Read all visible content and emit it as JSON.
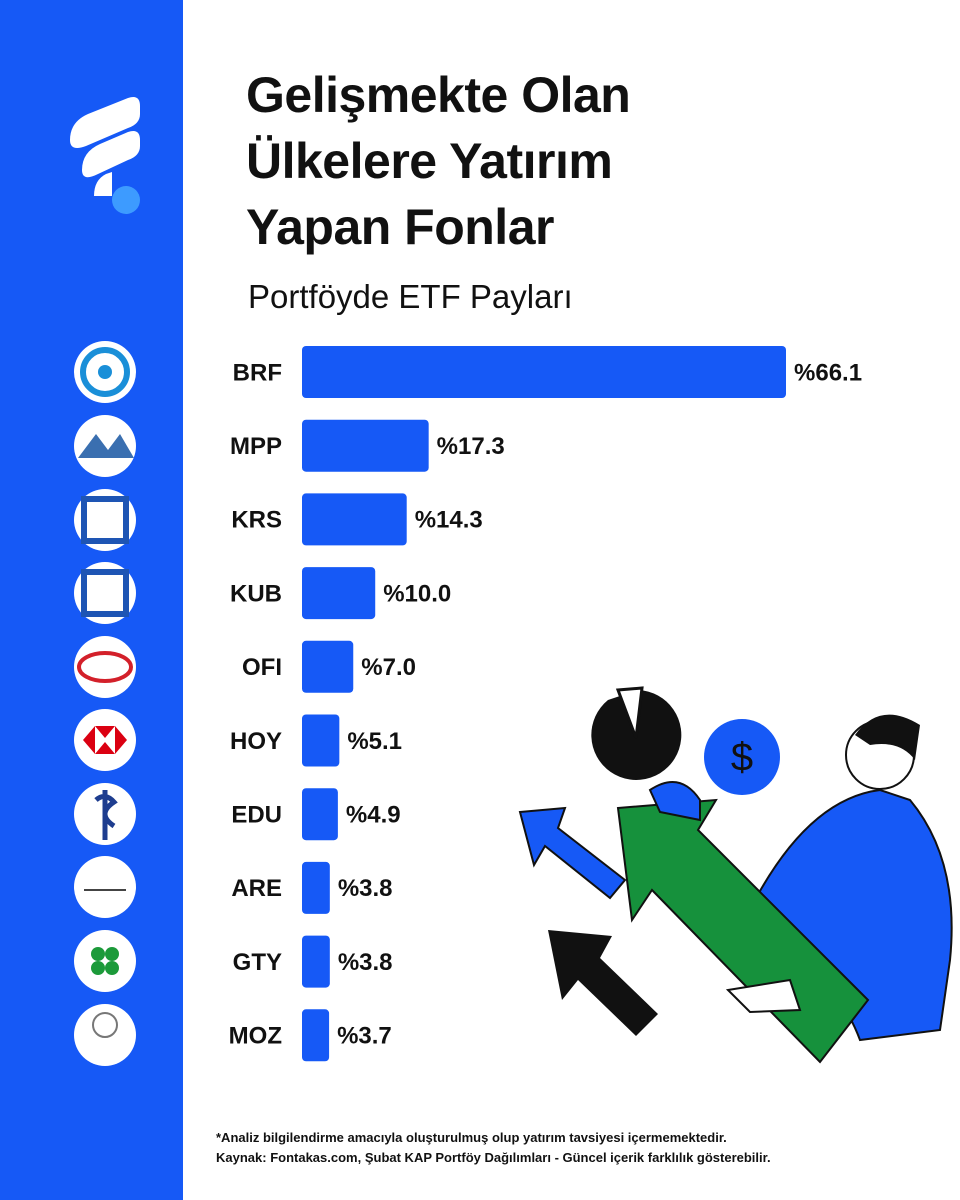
{
  "chart_data": {
    "type": "bar",
    "orientation": "horizontal",
    "title": "Gelişmekte Olan Ülkelere Yatırım Yapan Fonlar",
    "subtitle": "Portföyde ETF Payları",
    "categories": [
      "BRF",
      "MPP",
      "KRS",
      "KUB",
      "OFI",
      "HOY",
      "EDU",
      "ARE",
      "GTY",
      "MOZ"
    ],
    "values": [
      66.1,
      17.3,
      14.3,
      10.0,
      7.0,
      5.1,
      4.9,
      3.8,
      3.8,
      3.7
    ],
    "value_labels": [
      "%66.1",
      "%17.3",
      "%14.3",
      "%10.0",
      "%7.0",
      "%5.1",
      "%4.9",
      "%3.8",
      "%3.8",
      "%3.7"
    ],
    "color": "#1659f6",
    "note": "*Analiz bilgilendirme amacıyla oluşturulmuş olup yatırım tavsiyesi içermemektedir.",
    "source": "Kaynak: Fontakas.com, Şubat KAP Portföy Dağılımları - Güncel içerik farklılık gösterebilir."
  }
}
